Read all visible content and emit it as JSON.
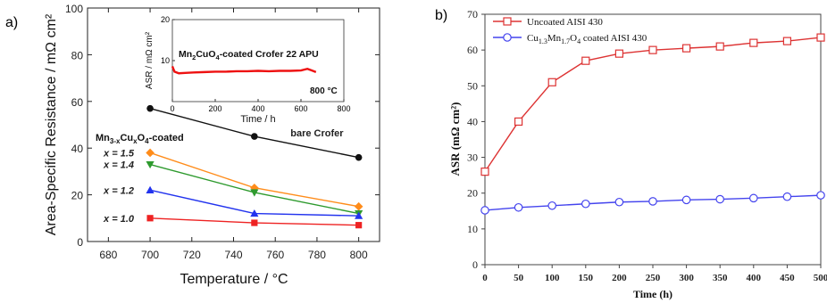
{
  "chart_data": [
    {
      "panel_label": "a)",
      "type": "line",
      "title": "",
      "xlabel_main": "Temperature",
      "xlabel_unit": "°C",
      "ylabel": "Area-Specific Resistance / mΩ cm²",
      "xlim": [
        670,
        810
      ],
      "ylim": [
        0,
        100
      ],
      "xticks": [
        "680",
        "700",
        "720",
        "740",
        "760",
        "780",
        "800"
      ],
      "yticks": [
        "0",
        "20",
        "40",
        "60",
        "80",
        "100"
      ],
      "x": [
        700,
        750,
        800
      ],
      "group_label": "Mn3-xCuxO4-coated",
      "series": [
        {
          "name": "bare Crofer",
          "values": [
            57,
            45,
            36
          ],
          "color": "#111111",
          "marker": "circle"
        },
        {
          "name": "x = 1.5",
          "values": [
            38,
            23,
            15
          ],
          "color": "#ff8c1a",
          "marker": "diamond"
        },
        {
          "name": "x = 1.4",
          "values": [
            33,
            21,
            12
          ],
          "color": "#2e9a2e",
          "marker": "triangle-down"
        },
        {
          "name": "x = 1.2",
          "values": [
            22,
            12,
            11
          ],
          "color": "#2233ee",
          "marker": "triangle-up"
        },
        {
          "name": "x = 1.0",
          "values": [
            10,
            8,
            7
          ],
          "color": "#ee2222",
          "marker": "square"
        }
      ],
      "legend_placement": "inline labels left of series",
      "grid": false,
      "inset": {
        "type": "line",
        "title": "Mn2CuO4-coated Crofer 22 APU",
        "annotation": "800 °C",
        "xlabel": "Time / h",
        "ylabel": "ASR / mΩ cm²",
        "xlim": [
          0,
          800
        ],
        "ylim": [
          0,
          20
        ],
        "xticks": [
          "0",
          "200",
          "400",
          "600",
          "800"
        ],
        "yticks": [
          "10",
          "20"
        ],
        "x": [
          0,
          10,
          30,
          60,
          100,
          150,
          200,
          250,
          300,
          350,
          400,
          450,
          500,
          550,
          600,
          630,
          650,
          670
        ],
        "values": [
          8.6,
          7.3,
          6.9,
          7.0,
          7.1,
          7.2,
          7.3,
          7.3,
          7.4,
          7.4,
          7.5,
          7.4,
          7.5,
          7.5,
          7.6,
          8.0,
          7.6,
          7.2
        ],
        "color": "#ee1111"
      }
    },
    {
      "panel_label": "b)",
      "type": "line",
      "title": "",
      "xlabel": "Time (h)",
      "ylabel": "ASR (mΩ cm²)",
      "xlim": [
        0,
        500
      ],
      "ylim": [
        0,
        70
      ],
      "xticks": [
        "0",
        "50",
        "100",
        "150",
        "200",
        "250",
        "300",
        "350",
        "400",
        "450",
        "500"
      ],
      "yticks": [
        "0",
        "10",
        "20",
        "30",
        "40",
        "50",
        "60",
        "70"
      ],
      "x": [
        0,
        50,
        100,
        150,
        200,
        250,
        300,
        350,
        400,
        450,
        500
      ],
      "series": [
        {
          "name": "Uncoated AISI 430",
          "values": [
            26,
            40,
            51,
            57,
            59,
            60,
            60.5,
            61,
            62,
            62.5,
            63.5
          ],
          "color": "#dd3333",
          "marker": "square-open"
        },
        {
          "name": "Cu1.3Mn1.7O4 coated AISI 430",
          "values": [
            15.2,
            16,
            16.5,
            17,
            17.5,
            17.7,
            18.1,
            18.3,
            18.6,
            19,
            19.4
          ],
          "color": "#4444ee",
          "marker": "circle-open"
        }
      ],
      "legend_placement": "top-left",
      "grid": false
    }
  ]
}
